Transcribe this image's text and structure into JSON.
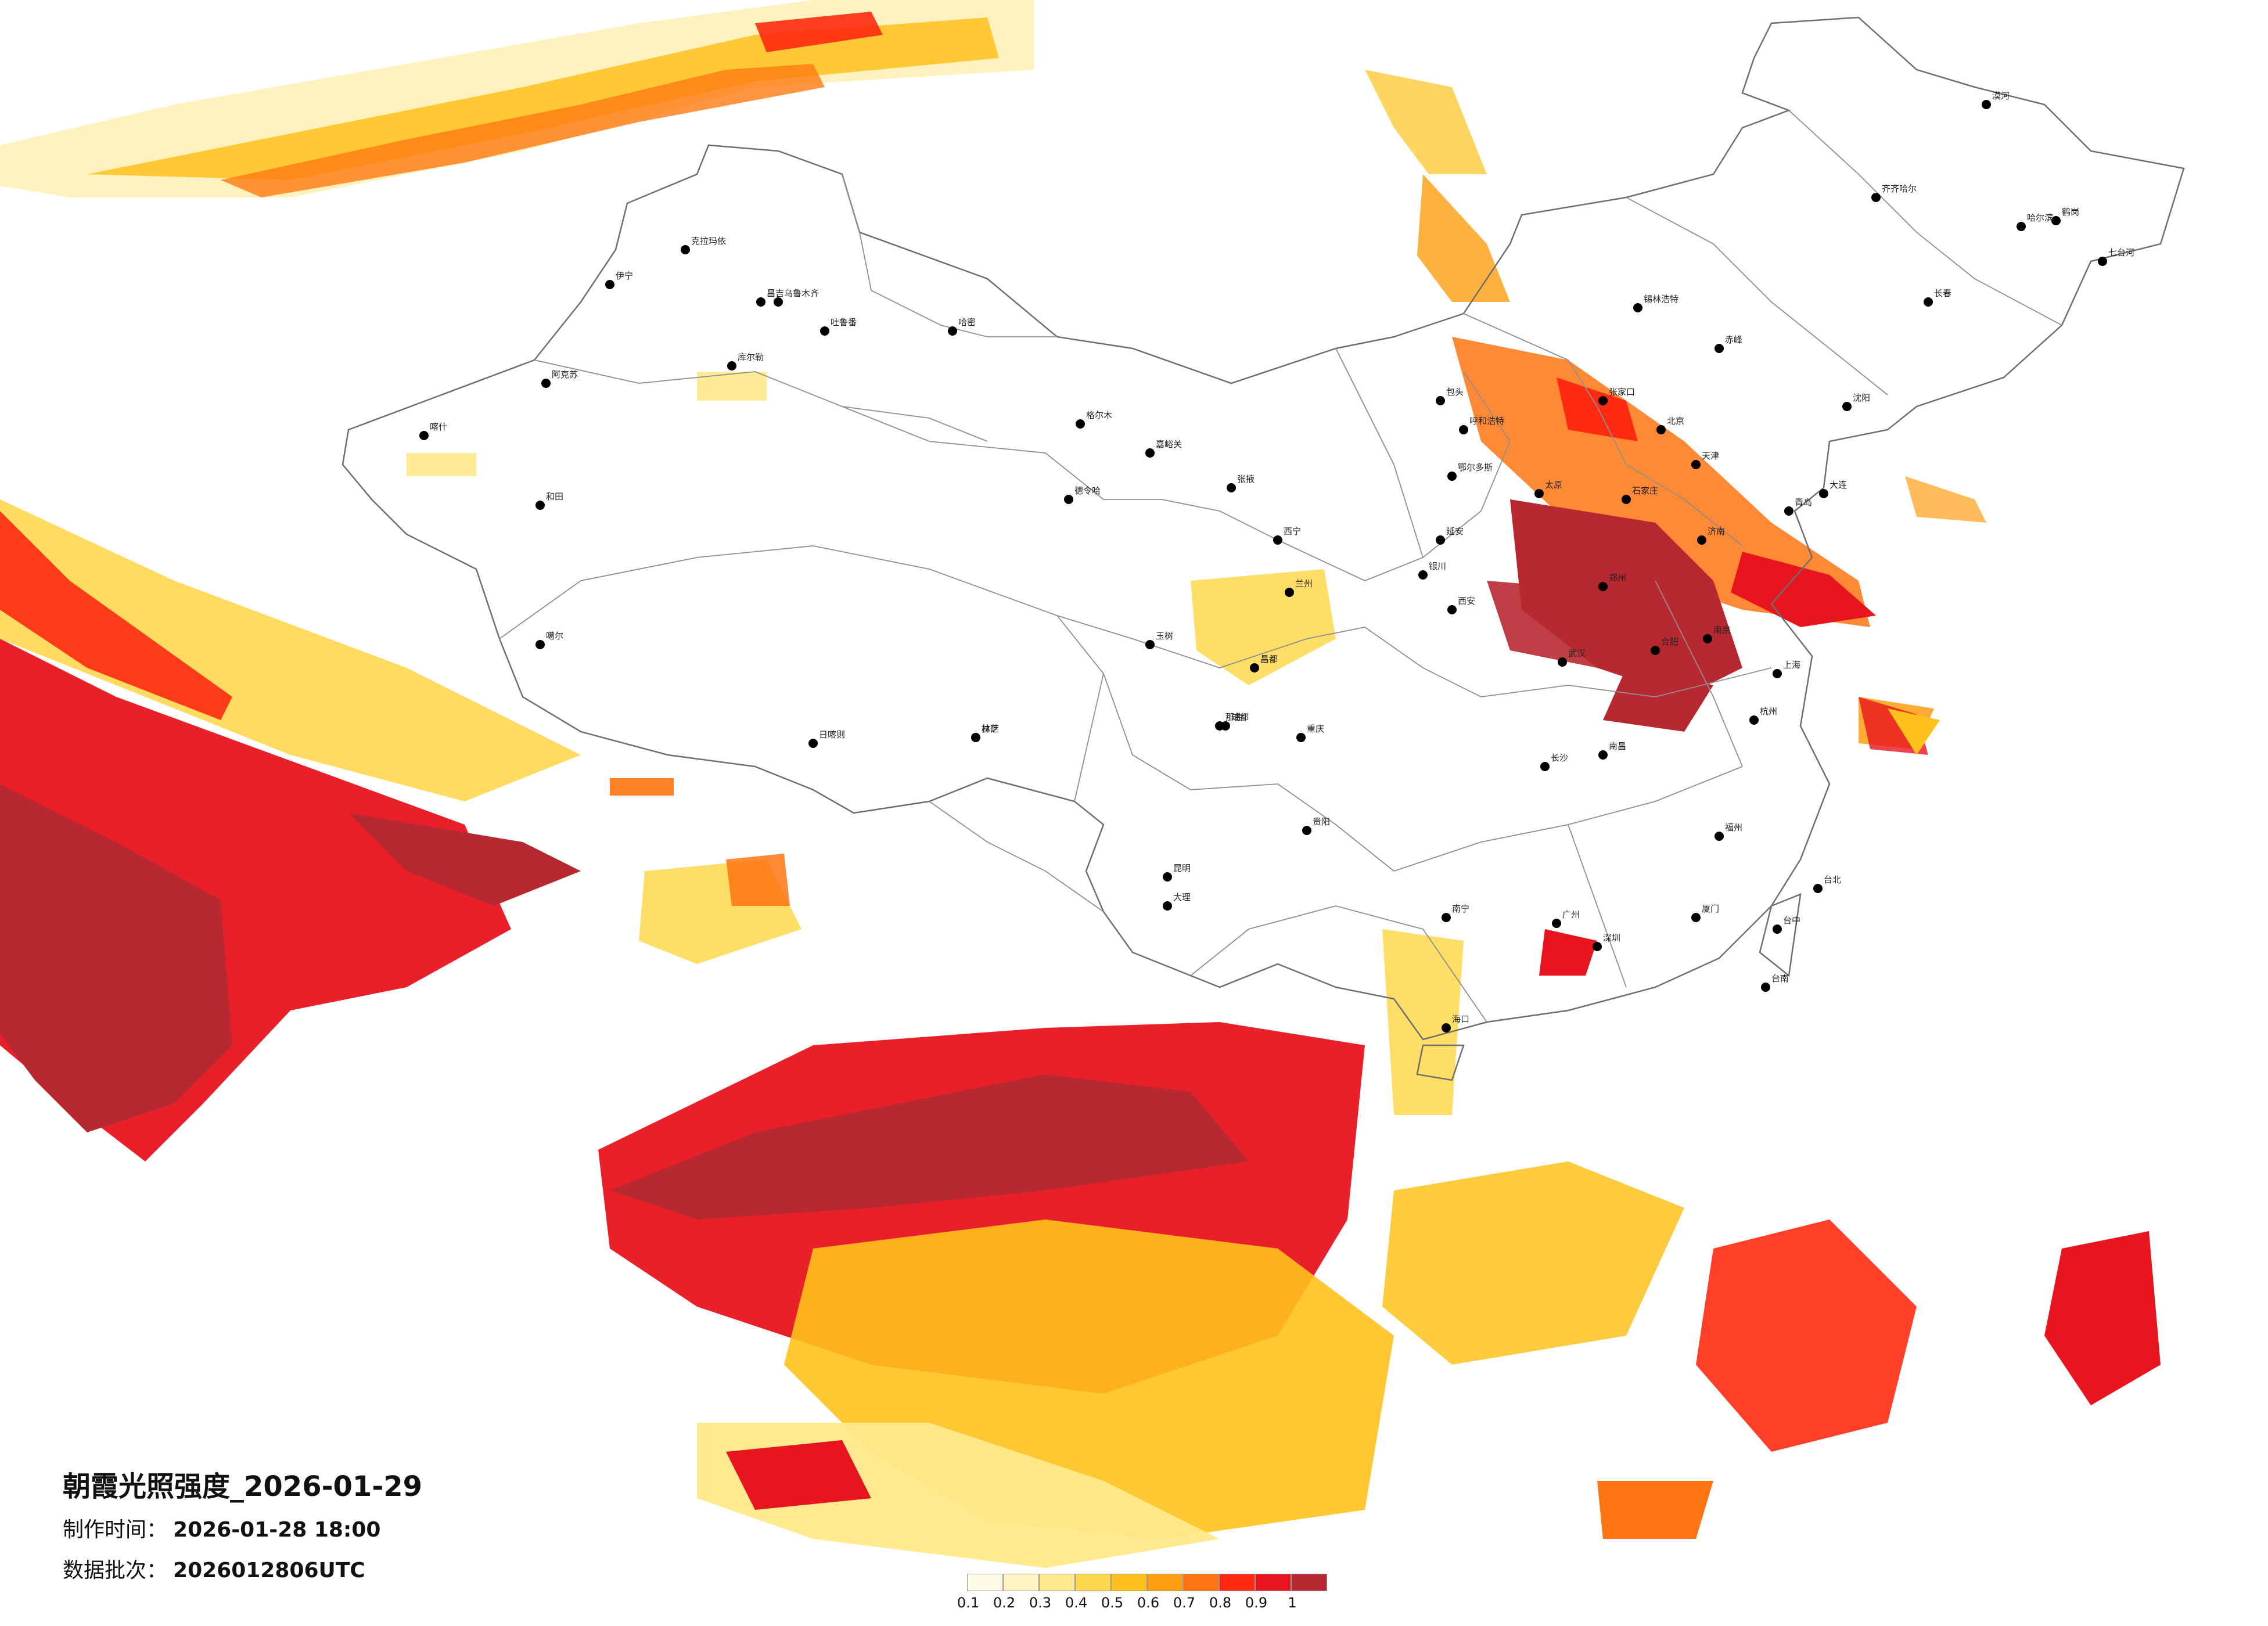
{
  "title": "朝霞光照强度_2026-01-29",
  "made_time": {
    "label": "制作时间：",
    "value": "2026-01-28 18:00"
  },
  "batch": {
    "label": "数据批次：",
    "value": "2026012806UTC"
  },
  "legend": {
    "ticks": [
      "0.1",
      "0.2",
      "0.3",
      "0.4",
      "0.5",
      "0.6",
      "0.7",
      "0.8",
      "0.9",
      "1"
    ],
    "colors": [
      "#fffbe8",
      "#fff4c0",
      "#ffe98a",
      "#ffd84e",
      "#ffbe1a",
      "#ff9e10",
      "#ff7410",
      "#ff2a10",
      "#e8141e",
      "#b82830"
    ]
  },
  "cities": [
    {
      "name": "伊宁"
    },
    {
      "name": "克拉玛依"
    },
    {
      "name": "昌吉"
    },
    {
      "name": "乌鲁木齐"
    },
    {
      "name": "吐鲁番"
    },
    {
      "name": "哈密"
    },
    {
      "name": "库尔勒"
    },
    {
      "name": "阿克苏"
    },
    {
      "name": "喀什"
    },
    {
      "name": "和田"
    },
    {
      "name": "格尔木"
    },
    {
      "name": "德令哈"
    },
    {
      "name": "嘉峪关"
    },
    {
      "name": "张掖"
    },
    {
      "name": "西宁"
    },
    {
      "name": "兰州"
    },
    {
      "name": "拉萨"
    },
    {
      "name": "日喀则"
    },
    {
      "name": "林芝"
    },
    {
      "name": "那曲"
    },
    {
      "name": "昌都"
    },
    {
      "name": "玉树"
    },
    {
      "name": "噶尔"
    },
    {
      "name": "银川"
    },
    {
      "name": "包头"
    },
    {
      "name": "呼和浩特"
    },
    {
      "name": "鄂尔多斯"
    },
    {
      "name": "延安"
    },
    {
      "name": "西安"
    },
    {
      "name": "太原"
    },
    {
      "name": "石家庄"
    },
    {
      "name": "北京"
    },
    {
      "name": "天津"
    },
    {
      "name": "济南"
    },
    {
      "name": "青岛"
    },
    {
      "name": "郑州"
    },
    {
      "name": "武汉"
    },
    {
      "name": "长沙"
    },
    {
      "name": "南昌"
    },
    {
      "name": "合肥"
    },
    {
      "name": "南京"
    },
    {
      "name": "上海"
    },
    {
      "name": "杭州"
    },
    {
      "name": "福州"
    },
    {
      "name": "厦门"
    },
    {
      "name": "广州"
    },
    {
      "name": "深圳"
    },
    {
      "name": "南宁"
    },
    {
      "name": "海口"
    },
    {
      "name": "贵阳"
    },
    {
      "name": "昆明"
    },
    {
      "name": "成都"
    },
    {
      "name": "重庆"
    },
    {
      "name": "沈阳"
    },
    {
      "name": "长春"
    },
    {
      "name": "哈尔滨"
    },
    {
      "name": "大连"
    },
    {
      "name": "齐齐哈尔"
    },
    {
      "name": "锡林浩特"
    },
    {
      "name": "张家口"
    },
    {
      "name": "台北"
    },
    {
      "name": "台中"
    },
    {
      "name": "台南"
    },
    {
      "name": "大理"
    },
    {
      "name": "赤峰"
    },
    {
      "name": "鹤岗"
    },
    {
      "name": "七台河"
    },
    {
      "name": "漠河"
    }
  ]
}
